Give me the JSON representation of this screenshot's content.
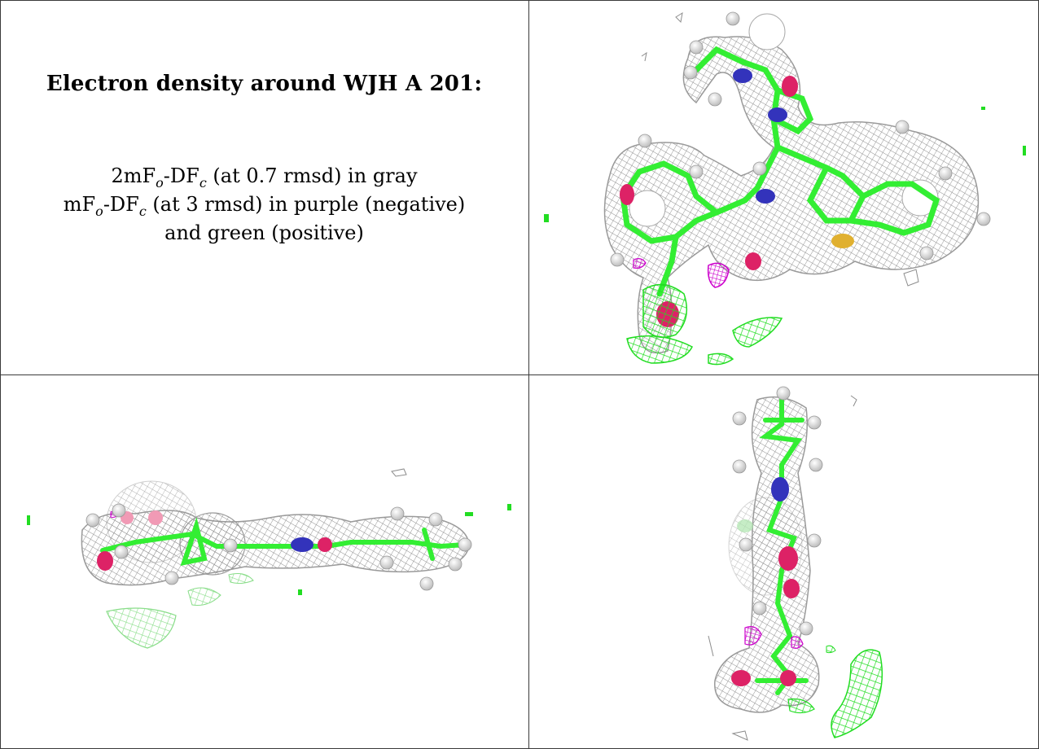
{
  "caption": {
    "title": "Electron density around WJH A 201:",
    "line1": {
      "pre": "2mF",
      "sub1": "o",
      "mid": "-DF",
      "sub2": "c",
      "post": " (at 0.7 rmsd) in gray"
    },
    "line2": {
      "pre": "mF",
      "sub1": "o",
      "mid": "-DF",
      "sub2": "c",
      "post": " (at 3 rmsd) in purple (negative)"
    },
    "line3": "and green (positive)"
  },
  "colors": {
    "mesh_2fofc": "#8c8c8c",
    "mesh_positive": "#22dd22",
    "mesh_negative": "#cc00cc",
    "carbon": "#33ee33",
    "nitrogen": "#3333bb",
    "oxygen": "#dd2266",
    "sulfur": "#e0b030",
    "hydrogen": "#e8e8e8"
  },
  "panels": [
    {
      "view": "face-on"
    },
    {
      "view": "edge-on"
    },
    {
      "view": "end-on"
    }
  ]
}
